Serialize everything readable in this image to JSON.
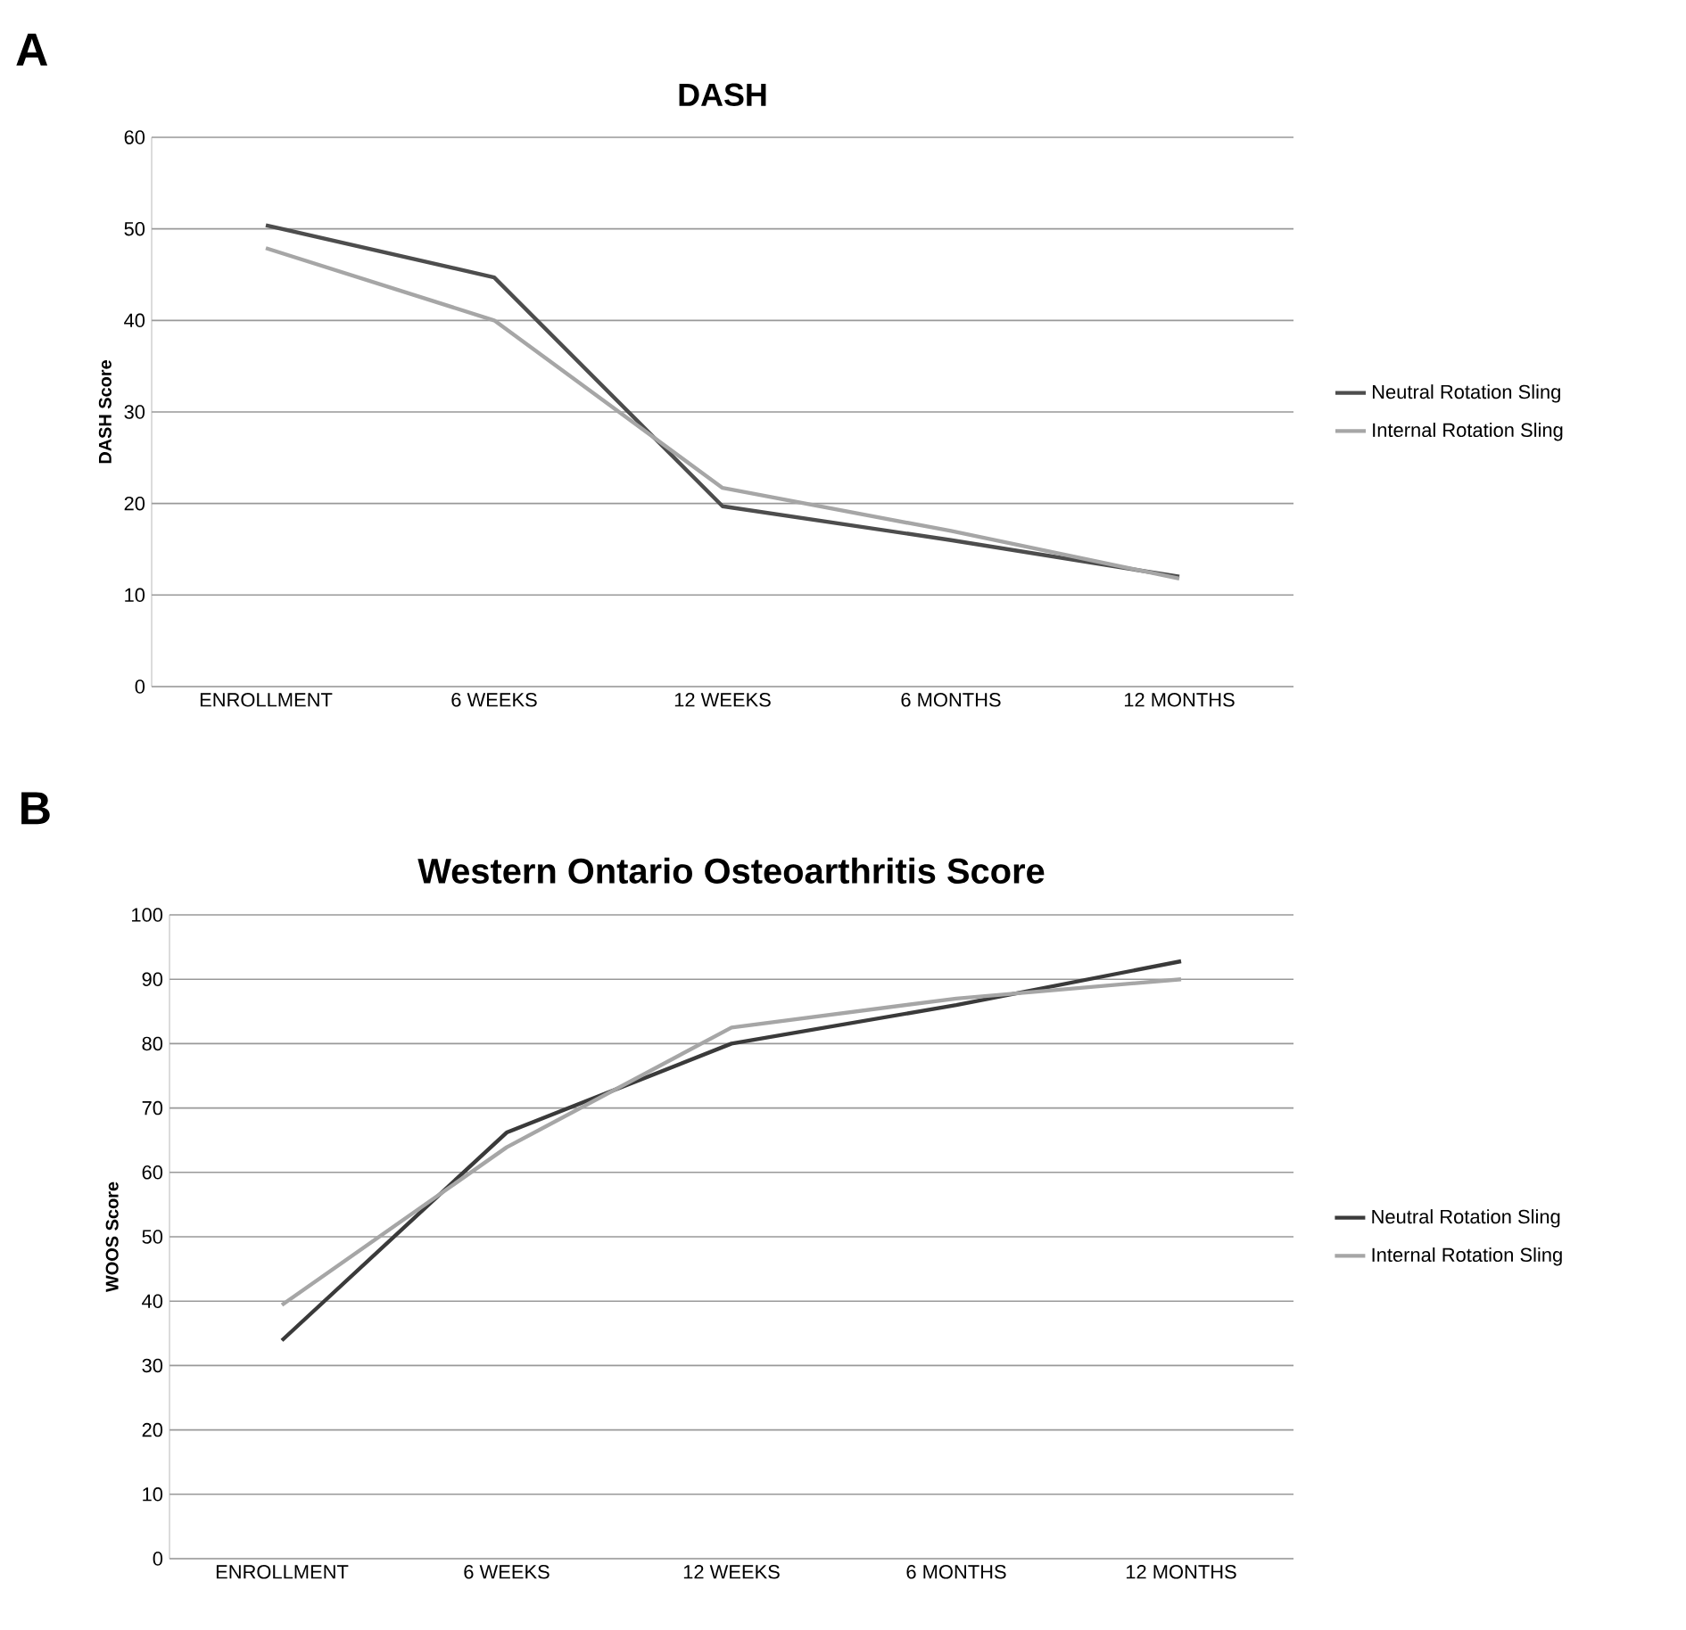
{
  "chart_data": [
    {
      "type": "line",
      "title": "DASH",
      "ylabel": "DASH Score",
      "annotations": [
        "A"
      ],
      "categories": [
        "ENROLLMENT",
        "6 WEEKS",
        "12 WEEKS",
        "6 MONTHS",
        "12 MONTHS"
      ],
      "series": [
        {
          "name": "Neutral Rotation Sling",
          "color": "#4d4d4d",
          "values": [
            50.4,
            44.7,
            19.7,
            16,
            12
          ]
        },
        {
          "name": "Internal Rotation Sling",
          "color": "#a6a6a6",
          "values": [
            47.9,
            40,
            21.7,
            17,
            11.8
          ]
        }
      ],
      "ylim": [
        0,
        60
      ],
      "yticks": [
        0,
        10,
        20,
        30,
        40,
        50,
        60
      ],
      "grid": "y",
      "legend": "right"
    },
    {
      "type": "line",
      "title": "Western Ontario Osteoarthritis Score",
      "ylabel": "WOOS Score",
      "annotations": [
        "B"
      ],
      "categories": [
        "ENROLLMENT",
        "6 WEEKS",
        "12 WEEKS",
        "6 MONTHS",
        "12 MONTHS"
      ],
      "series": [
        {
          "name": "Neutral Rotation Sling",
          "color": "#3a3a3a",
          "values": [
            33.9,
            66.2,
            80,
            86,
            92.8
          ]
        },
        {
          "name": "Internal Rotation Sling",
          "color": "#a6a6a6",
          "values": [
            39.4,
            63.9,
            82.5,
            87,
            90
          ]
        }
      ],
      "ylim": [
        0,
        100
      ],
      "yticks": [
        0,
        10,
        20,
        30,
        40,
        50,
        60,
        70,
        80,
        90,
        100
      ],
      "grid": "y",
      "legend": "right"
    }
  ]
}
